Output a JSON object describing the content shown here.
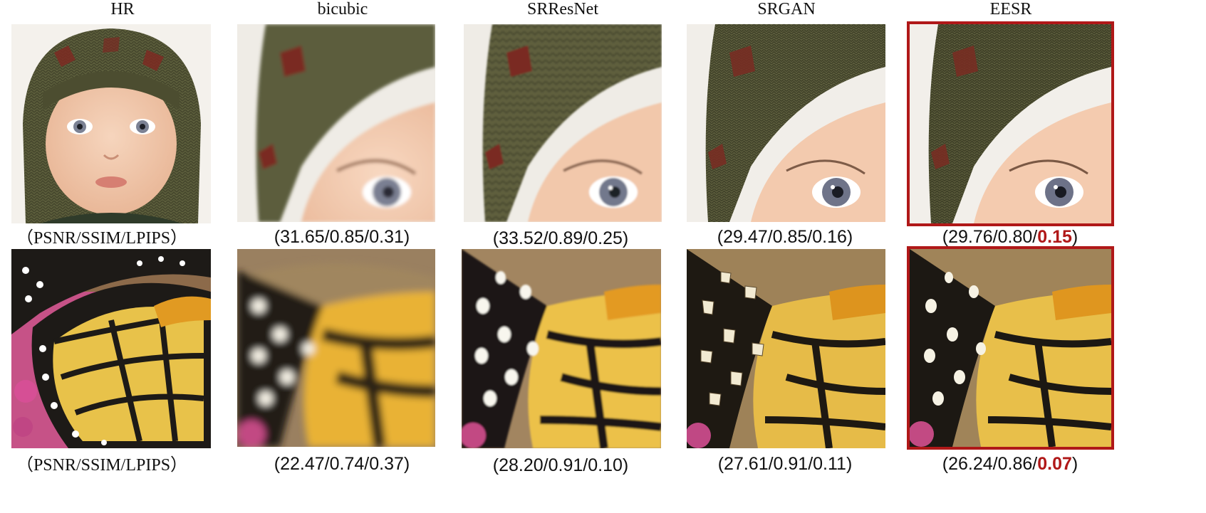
{
  "headers": [
    "HR",
    "bicubic",
    "SRResNet",
    "SRGAN",
    "EESR"
  ],
  "highlight_color": "#b01818",
  "rows": [
    {
      "subject": "baby",
      "captions": [
        {
          "text": "（PSNR/SSIM/LPIPS）"
        },
        {
          "text": "(31.65/0.85/0.31)"
        },
        {
          "text": "(33.52/0.89/0.25)"
        },
        {
          "text": "(29.47/0.85/0.16)"
        },
        {
          "prefix": "(29.76/0.80/",
          "best": "0.15",
          "suffix": ")"
        }
      ]
    },
    {
      "subject": "butterfly",
      "captions": [
        {
          "text": "（PSNR/SSIM/LPIPS）"
        },
        {
          "text": "(22.47/0.74/0.37)"
        },
        {
          "text": "(28.20/0.91/0.10)"
        },
        {
          "text": "(27.61/0.91/0.11)"
        },
        {
          "prefix": "(26.24/0.86/",
          "best": "0.07",
          "suffix": ")"
        }
      ]
    }
  ]
}
